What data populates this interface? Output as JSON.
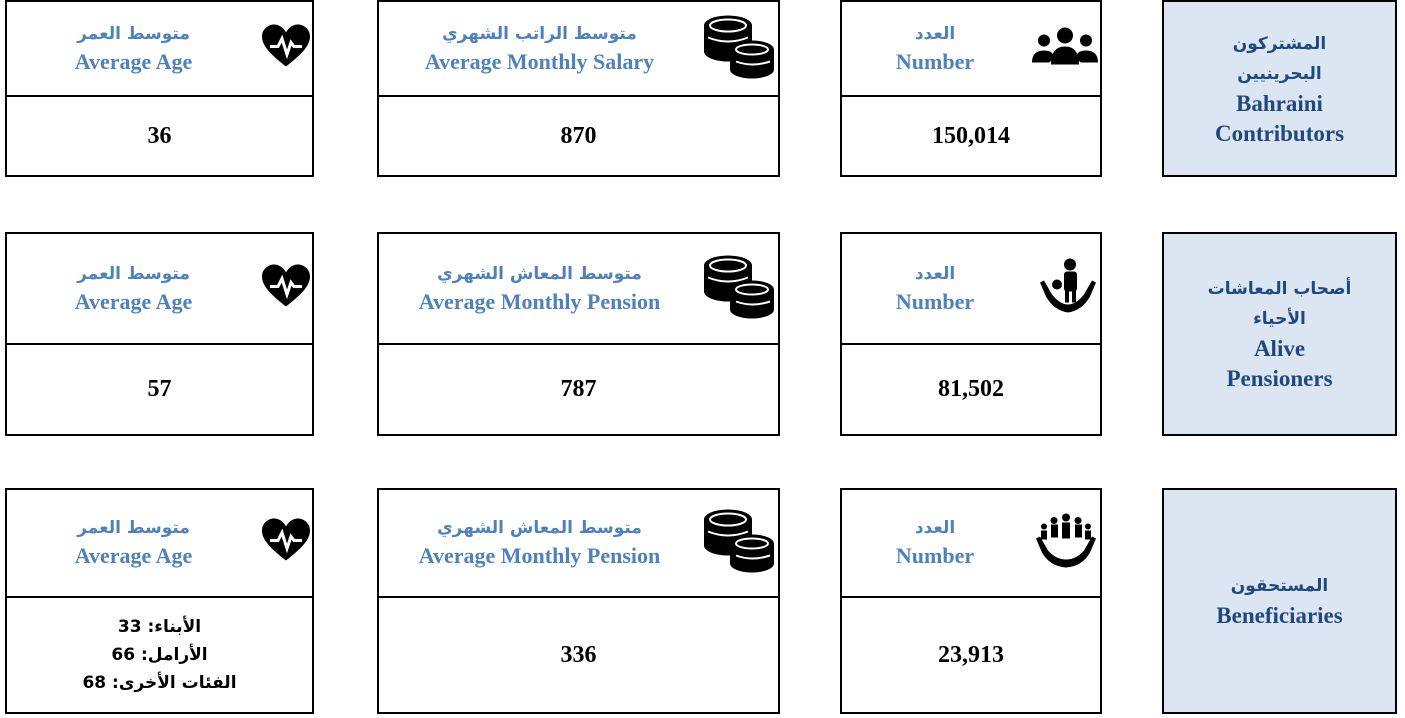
{
  "rows": [
    {
      "category": {
        "ar": [
          "المشتركون",
          "البحرينيين"
        ],
        "en": [
          "Bahraini",
          "Contributors"
        ]
      },
      "cards": [
        {
          "ar": "العدد",
          "en": "Number",
          "value": "150,014"
        },
        {
          "ar": "متوسط الراتب الشهري",
          "en": "Average Monthly Salary",
          "value": "870"
        },
        {
          "ar": "متوسط العمر",
          "en": "Average Age",
          "value": "36"
        }
      ]
    },
    {
      "category": {
        "ar": [
          "أصحاب المعاشات",
          "الأحياء"
        ],
        "en": [
          "Alive",
          "Pensioners"
        ]
      },
      "cards": [
        {
          "ar": "العدد",
          "en": "Number",
          "value": "81,502"
        },
        {
          "ar": "متوسط المعاش الشهري",
          "en": "Average Monthly Pension",
          "value": "787"
        },
        {
          "ar": "متوسط العمر",
          "en": "Average Age",
          "value": "57"
        }
      ]
    },
    {
      "category": {
        "ar": [
          "المستحقون"
        ],
        "en": [
          "Beneficiaries"
        ]
      },
      "cards": [
        {
          "ar": "العدد",
          "en": "Number",
          "value": "23,913"
        },
        {
          "ar": "متوسط المعاش الشهري",
          "en": "Average Monthly Pension",
          "value": "336"
        },
        {
          "ar": "متوسط العمر",
          "en": "Average Age",
          "value": [
            "الأبناء: 33",
            "الأرامل: 66",
            "الفئات الأخرى: 68"
          ]
        }
      ]
    }
  ]
}
